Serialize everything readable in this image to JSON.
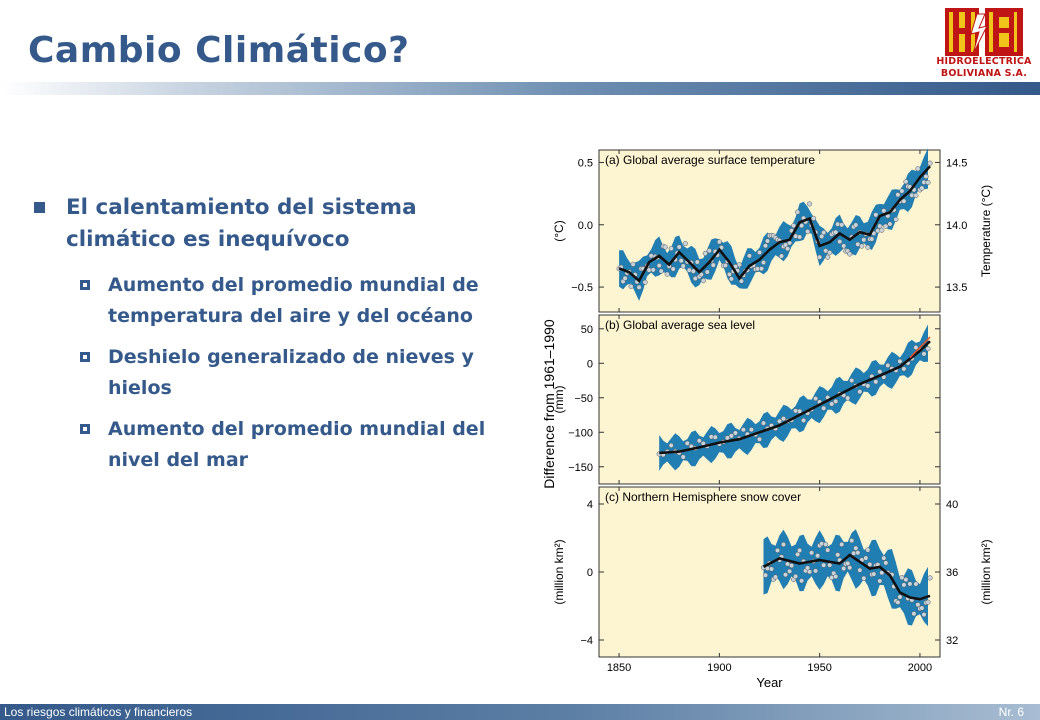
{
  "slide": {
    "title": "Cambio Climático?",
    "logo_text_1": "HIDROELECTRICA",
    "logo_text_2": "BOLIVIANA S.A.",
    "bullet_main": "El calentamiento del sistema climático es inequívoco",
    "sub_bullets": [
      "Aumento del promedio mundial de temperatura del aire y del océano",
      "Deshielo generalizado de nieves y hielos",
      "Aumento del promedio mundial del nivel del mar"
    ],
    "footer_left": "Los riesgos climáticos y financieros",
    "footer_right": "Nr. 6",
    "colors": {
      "accent": "#34598a",
      "logo_red": "#c01515",
      "logo_yellow": "#f0c419",
      "panel_bg": "#fdf4d2",
      "band": "#1577b0"
    }
  },
  "chart_data": [
    {
      "type": "line",
      "title": "(a) Global average surface temperature",
      "xlabel": "Year",
      "ylabel_left": "(°C)",
      "ylabel_right": "Temperature (°C)",
      "shared_ylabel": "Difference from 1961–1990",
      "xlim": [
        1840,
        2010
      ],
      "ylim": [
        -0.7,
        0.6
      ],
      "x_ticks": [
        1850,
        1900,
        1950,
        2000
      ],
      "y_ticks": [
        "0.5",
        "0.0",
        "−0.5"
      ],
      "y_ticks_right": [
        "14.5",
        "14.0",
        "13.5"
      ],
      "x": [
        1850,
        1855,
        1860,
        1865,
        1870,
        1875,
        1880,
        1885,
        1890,
        1895,
        1900,
        1905,
        1910,
        1915,
        1920,
        1925,
        1930,
        1935,
        1940,
        1945,
        1950,
        1955,
        1960,
        1965,
        1970,
        1975,
        1980,
        1985,
        1990,
        1995,
        2000,
        2005
      ],
      "values": [
        -0.35,
        -0.38,
        -0.45,
        -0.3,
        -0.25,
        -0.32,
        -0.22,
        -0.3,
        -0.38,
        -0.3,
        -0.2,
        -0.3,
        -0.43,
        -0.33,
        -0.28,
        -0.2,
        -0.14,
        -0.12,
        0.02,
        0.05,
        -0.17,
        -0.14,
        -0.07,
        -0.12,
        -0.06,
        -0.08,
        0.07,
        0.1,
        0.2,
        0.27,
        0.38,
        0.47
      ]
    },
    {
      "type": "line",
      "title": "(b) Global average sea level",
      "ylabel": "(mm)",
      "xlim": [
        1840,
        2010
      ],
      "ylim": [
        -175,
        70
      ],
      "y_ticks": [
        "50",
        "0",
        "−50",
        "−100",
        "−150"
      ],
      "x": [
        1870,
        1880,
        1890,
        1900,
        1910,
        1920,
        1930,
        1940,
        1950,
        1960,
        1970,
        1980,
        1990,
        2000,
        2005
      ],
      "values": [
        -130,
        -128,
        -122,
        -115,
        -110,
        -100,
        -90,
        -75,
        -60,
        -45,
        -30,
        -18,
        -5,
        18,
        32
      ]
    },
    {
      "type": "line",
      "title": "(c) Northern Hemisphere snow cover",
      "ylabel_left": "(million km²)",
      "ylabel_right": "(million km²)",
      "xlim": [
        1840,
        2010
      ],
      "ylim": [
        -5,
        5
      ],
      "y_ticks": [
        "4",
        "0",
        "−4"
      ],
      "y_ticks_right": [
        "40",
        "36",
        "32"
      ],
      "x": [
        1922,
        1930,
        1940,
        1950,
        1960,
        1965,
        1970,
        1975,
        1980,
        1985,
        1990,
        1995,
        2000,
        2005
      ],
      "values": [
        0.3,
        0.8,
        0.5,
        0.7,
        0.5,
        1.0,
        0.6,
        0.2,
        0.3,
        -0.2,
        -1.2,
        -1.5,
        -1.6,
        -1.4
      ]
    }
  ]
}
